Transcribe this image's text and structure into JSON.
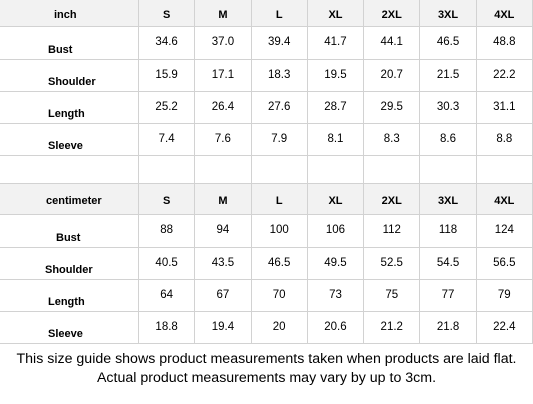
{
  "sizes": [
    "S",
    "M",
    "L",
    "XL",
    "2XL",
    "3XL",
    "4XL"
  ],
  "tables": [
    {
      "unit": "inch",
      "rows": [
        {
          "label": "Bust",
          "values": [
            "34.6",
            "37.0",
            "39.4",
            "41.7",
            "44.1",
            "46.5",
            "48.8"
          ]
        },
        {
          "label": "Shoulder",
          "values": [
            "15.9",
            "17.1",
            "18.3",
            "19.5",
            "20.7",
            "21.5",
            "22.2"
          ]
        },
        {
          "label": "Length",
          "values": [
            "25.2",
            "26.4",
            "27.6",
            "28.7",
            "29.5",
            "30.3",
            "31.1"
          ]
        },
        {
          "label": "Sleeve",
          "values": [
            "7.4",
            "7.6",
            "7.9",
            "8.1",
            "8.3",
            "8.6",
            "8.8"
          ]
        }
      ]
    },
    {
      "unit": "centimeter",
      "rows": [
        {
          "label": "Bust",
          "values": [
            "88",
            "94",
            "100",
            "106",
            "112",
            "118",
            "124"
          ]
        },
        {
          "label": "Shoulder",
          "values": [
            "40.5",
            "43.5",
            "46.5",
            "49.5",
            "52.5",
            "54.5",
            "56.5"
          ]
        },
        {
          "label": "Length",
          "values": [
            "64",
            "67",
            "70",
            "73",
            "75",
            "77",
            "79"
          ]
        },
        {
          "label": "Sleeve",
          "values": [
            "18.8",
            "19.4",
            "20",
            "20.6",
            "21.2",
            "21.8",
            "22.4"
          ]
        }
      ]
    }
  ],
  "note": "This size guide shows product measurements taken when products are laid flat. Actual product measurements may vary by up to 3cm."
}
